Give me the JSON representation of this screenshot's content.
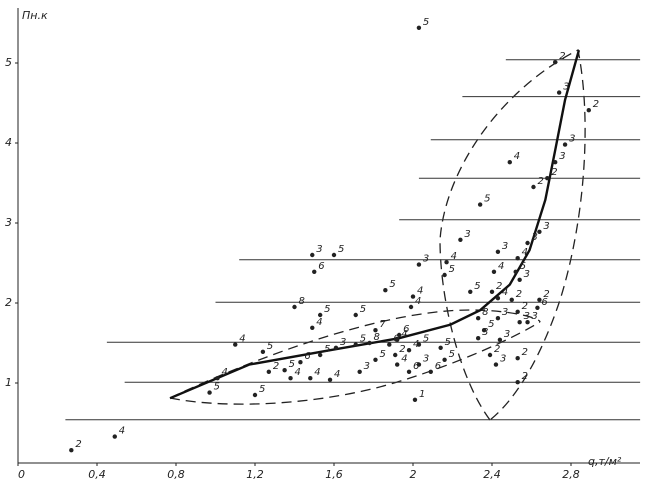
{
  "chart_data": {
    "type": "scatter",
    "ylabel": "Пн.к",
    "xlabel": "q,т/м²",
    "xlim": [
      0,
      3.2
    ],
    "ylim": [
      0,
      5.8
    ],
    "xticks": [
      0,
      {
        "value": 0.4,
        "label": "0,4"
      },
      {
        "value": 0.8,
        "label": "0,8"
      },
      {
        "value": 1.2,
        "label": "1,2"
      },
      {
        "value": 1.6,
        "label": "1,6"
      },
      2,
      {
        "value": 2.4,
        "label": "2,4"
      },
      {
        "value": 2.8,
        "label": "2,8"
      }
    ],
    "yticks": [
      1,
      2,
      3,
      4,
      5
    ],
    "color": "#222222",
    "x": [
      2.03,
      2.72,
      2.74,
      2.89,
      2.77,
      2.72,
      2.49,
      2.68,
      2.61,
      2.34,
      2.24,
      2.64,
      2.58,
      2.43,
      2.53,
      2.17,
      2.03,
      2.16,
      2.41,
      2.52,
      2.54,
      2.4,
      2.29,
      2.43,
      2.0,
      2.5,
      2.64,
      2.63,
      1.99,
      2.53,
      2.43,
      2.54,
      2.33,
      2.36,
      2.58,
      1.86,
      1.49,
      1.6,
      1.5,
      1.4,
      1.71,
      1.53,
      1.49,
      1.1,
      1.24,
      1.01,
      0.97,
      1.2,
      1.27,
      1.35,
      1.43,
      1.53,
      1.61,
      1.71,
      1.78,
      1.88,
      1.92,
      1.91,
      1.98,
      2.03,
      1.48,
      1.58,
      1.38,
      1.73,
      1.81,
      1.92,
      1.98,
      2.03,
      2.09,
      2.16,
      2.01,
      2.39,
      2.42,
      2.53,
      2.53,
      2.44,
      2.33,
      2.14,
      0.27,
      0.49,
      1.81,
      1.93
    ],
    "values": [
      5.44,
      5.01,
      4.63,
      4.41,
      3.98,
      3.76,
      3.76,
      3.56,
      3.45,
      3.23,
      2.79,
      2.89,
      2.75,
      2.64,
      2.56,
      2.51,
      2.48,
      2.35,
      2.39,
      2.39,
      2.29,
      2.14,
      2.14,
      2.06,
      2.08,
      2.04,
      2.04,
      1.94,
      1.95,
      1.89,
      1.81,
      1.76,
      1.81,
      1.66,
      1.76,
      2.16,
      2.6,
      2.6,
      2.39,
      1.95,
      1.85,
      1.85,
      1.69,
      1.48,
      1.39,
      1.06,
      0.88,
      0.85,
      1.14,
      1.16,
      1.26,
      1.35,
      1.44,
      1.48,
      1.5,
      1.48,
      1.54,
      1.35,
      1.41,
      1.48,
      1.06,
      1.04,
      1.06,
      1.14,
      1.29,
      1.23,
      1.14,
      1.23,
      1.14,
      1.29,
      0.79,
      1.35,
      1.23,
      1.31,
      1.01,
      1.54,
      1.56,
      1.44,
      0.16,
      0.33,
      1.66,
      1.6
    ],
    "point_labels": [
      "5",
      "2",
      "3",
      "2",
      "3",
      "3",
      "4",
      "2",
      "2",
      "5",
      "3",
      "3",
      "3",
      "3",
      "4",
      "4",
      "3",
      "5",
      "4",
      "5",
      "3",
      "2",
      "5",
      "4",
      "4",
      "2",
      "2",
      "6",
      "4",
      "2",
      "3",
      "3",
      "8",
      "5",
      "3",
      "5",
      "3",
      "5",
      "6",
      "8",
      "5",
      "5",
      "4",
      "4",
      "5",
      "4",
      "5",
      "5",
      "2",
      "5",
      "6",
      "5",
      "3",
      "5",
      "8",
      "6",
      "4",
      "2",
      "4",
      "5",
      "4",
      "4",
      "4",
      "3",
      "5",
      "4",
      "6",
      "3",
      "6",
      "5",
      "1",
      "2",
      "3",
      "2",
      "2",
      "3",
      "3",
      "5",
      "2",
      "4",
      "7",
      "6"
    ],
    "intervals": [
      {
        "y": 0.54,
        "x": [
          0.24,
          3.15
        ]
      },
      {
        "y": 1.01,
        "x": [
          0.54,
          3.15
        ]
      },
      {
        "y": 1.51,
        "x": [
          0.45,
          3.15
        ]
      },
      {
        "y": 2.01,
        "x": [
          1.0,
          3.15
        ]
      },
      {
        "y": 2.54,
        "x": [
          1.12,
          3.15
        ]
      },
      {
        "y": 3.04,
        "x": [
          1.93,
          3.15
        ]
      },
      {
        "y": 3.56,
        "x": [
          2.03,
          3.15
        ]
      },
      {
        "y": 4.04,
        "x": [
          2.09,
          3.15
        ]
      },
      {
        "y": 4.58,
        "x": [
          2.25,
          3.15
        ]
      },
      {
        "y": 5.04,
        "x": [
          2.47,
          3.15
        ]
      }
    ],
    "curve": {
      "x": [
        0.77,
        1.17,
        1.58,
        1.93,
        2.19,
        2.34,
        2.49,
        2.59,
        2.67,
        2.72,
        2.77,
        2.84
      ],
      "y": [
        0.81,
        1.23,
        1.41,
        1.56,
        1.73,
        1.91,
        2.23,
        2.66,
        3.29,
        3.91,
        4.54,
        5.16
      ]
    }
  }
}
